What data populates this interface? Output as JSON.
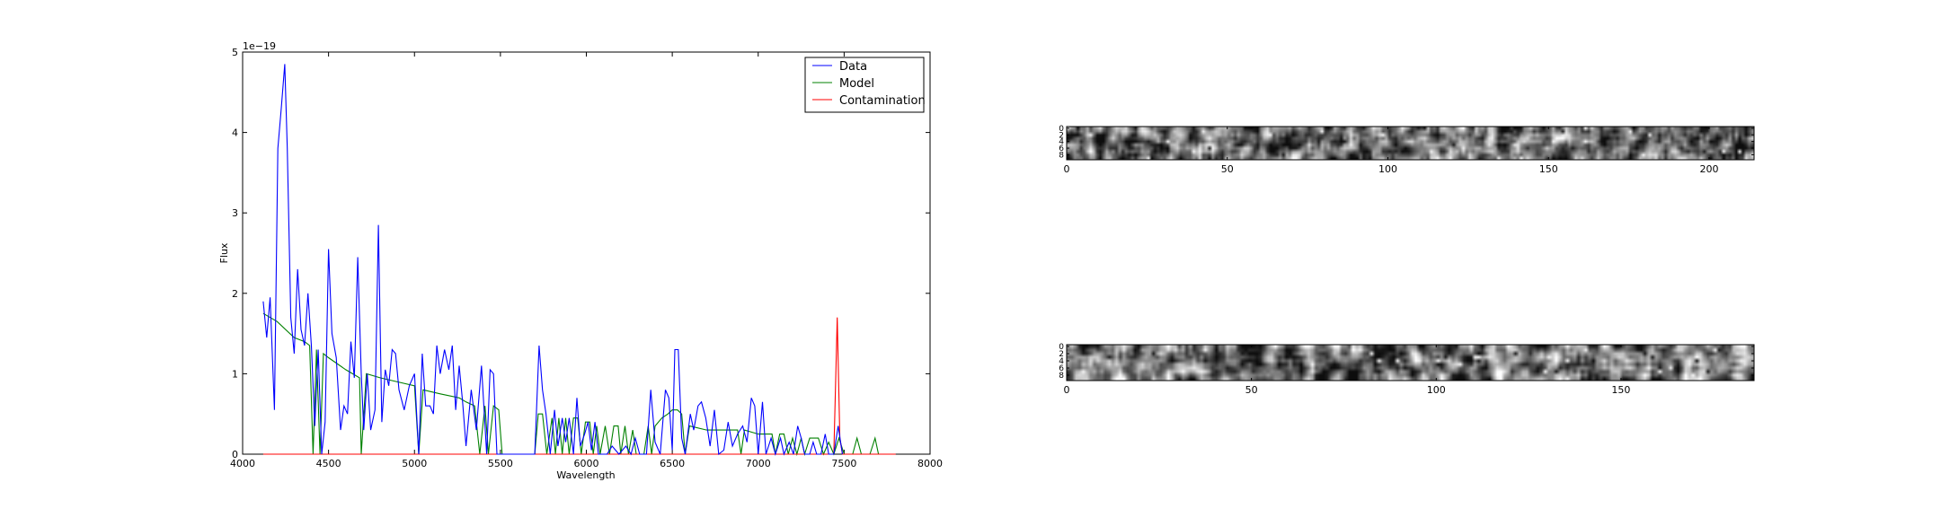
{
  "chart_data": [
    {
      "type": "line",
      "title": "",
      "xlabel": "Wavelength",
      "ylabel": "Flux",
      "y_multiplier": "1e−19",
      "xlim": [
        4000,
        8000
      ],
      "ylim": [
        0,
        5
      ],
      "xticks": [
        4000,
        4500,
        5000,
        5500,
        6000,
        6500,
        7000,
        7500,
        8000
      ],
      "yticks": [
        0,
        1,
        2,
        3,
        4,
        5
      ],
      "grid": false,
      "legend_position": "top-right",
      "series": [
        {
          "name": "Data",
          "color": "#0000ff",
          "points": [
            [
              4120,
              1.9
            ],
            [
              4140,
              1.45
            ],
            [
              4160,
              1.95
            ],
            [
              4185,
              0.55
            ],
            [
              4205,
              3.8
            ],
            [
              4225,
              4.3
            ],
            [
              4245,
              4.85
            ],
            [
              4260,
              3.8
            ],
            [
              4280,
              1.7
            ],
            [
              4300,
              1.25
            ],
            [
              4320,
              2.3
            ],
            [
              4340,
              1.55
            ],
            [
              4360,
              1.35
            ],
            [
              4380,
              2.0
            ],
            [
              4400,
              1.35
            ],
            [
              4420,
              0.35
            ],
            [
              4440,
              1.3
            ],
            [
              4460,
              0.0
            ],
            [
              4480,
              0.4
            ],
            [
              4500,
              2.55
            ],
            [
              4520,
              1.5
            ],
            [
              4545,
              1.2
            ],
            [
              4570,
              0.3
            ],
            [
              4590,
              0.6
            ],
            [
              4610,
              0.5
            ],
            [
              4630,
              1.4
            ],
            [
              4650,
              0.95
            ],
            [
              4670,
              2.45
            ],
            [
              4690,
              1.0
            ],
            [
              4705,
              0.3
            ],
            [
              4725,
              1.0
            ],
            [
              4745,
              0.3
            ],
            [
              4770,
              0.55
            ],
            [
              4790,
              2.85
            ],
            [
              4810,
              0.4
            ],
            [
              4830,
              1.05
            ],
            [
              4850,
              0.85
            ],
            [
              4870,
              1.3
            ],
            [
              4890,
              1.25
            ],
            [
              4910,
              0.8
            ],
            [
              4940,
              0.55
            ],
            [
              4970,
              0.85
            ],
            [
              5000,
              1.0
            ],
            [
              5025,
              0.0
            ],
            [
              5045,
              1.25
            ],
            [
              5065,
              0.6
            ],
            [
              5090,
              0.6
            ],
            [
              5110,
              0.5
            ],
            [
              5130,
              1.35
            ],
            [
              5150,
              1.0
            ],
            [
              5175,
              1.3
            ],
            [
              5200,
              1.05
            ],
            [
              5220,
              1.35
            ],
            [
              5240,
              0.55
            ],
            [
              5260,
              1.1
            ],
            [
              5280,
              0.65
            ],
            [
              5300,
              0.1
            ],
            [
              5330,
              0.8
            ],
            [
              5360,
              0.3
            ],
            [
              5390,
              1.1
            ],
            [
              5420,
              0.0
            ],
            [
              5440,
              1.05
            ],
            [
              5460,
              1.0
            ],
            [
              5480,
              0.0
            ],
            [
              5700,
              0.0
            ],
            [
              5725,
              1.35
            ],
            [
              5745,
              0.8
            ],
            [
              5765,
              0.5
            ],
            [
              5790,
              0.0
            ],
            [
              5815,
              0.55
            ],
            [
              5835,
              0.1
            ],
            [
              5860,
              0.45
            ],
            [
              5880,
              0.15
            ],
            [
              5900,
              0.45
            ],
            [
              5925,
              0.0
            ],
            [
              5945,
              0.7
            ],
            [
              5965,
              0.1
            ],
            [
              5990,
              0.25
            ],
            [
              6010,
              0.4
            ],
            [
              6030,
              0.05
            ],
            [
              6050,
              0.4
            ],
            [
              6070,
              0.0
            ],
            [
              6120,
              0.0
            ],
            [
              6150,
              0.1
            ],
            [
              6190,
              0.0
            ],
            [
              6230,
              0.1
            ],
            [
              6260,
              0.0
            ],
            [
              6285,
              0.2
            ],
            [
              6310,
              0.0
            ],
            [
              6350,
              0.0
            ],
            [
              6375,
              0.8
            ],
            [
              6400,
              0.15
            ],
            [
              6430,
              0.0
            ],
            [
              6460,
              0.8
            ],
            [
              6480,
              0.7
            ],
            [
              6500,
              0.05
            ],
            [
              6515,
              1.3
            ],
            [
              6535,
              1.3
            ],
            [
              6555,
              0.2
            ],
            [
              6575,
              0.0
            ],
            [
              6605,
              0.5
            ],
            [
              6625,
              0.3
            ],
            [
              6650,
              0.6
            ],
            [
              6670,
              0.65
            ],
            [
              6695,
              0.45
            ],
            [
              6720,
              0.1
            ],
            [
              6745,
              0.55
            ],
            [
              6770,
              0.0
            ],
            [
              6800,
              0.05
            ],
            [
              6825,
              0.4
            ],
            [
              6850,
              0.1
            ],
            [
              6880,
              0.25
            ],
            [
              6910,
              0.35
            ],
            [
              6935,
              0.15
            ],
            [
              6960,
              0.7
            ],
            [
              6980,
              0.6
            ],
            [
              7000,
              0.0
            ],
            [
              7025,
              0.65
            ],
            [
              7045,
              0.0
            ],
            [
              7075,
              0.2
            ],
            [
              7100,
              0.0
            ],
            [
              7130,
              0.2
            ],
            [
              7150,
              0.0
            ],
            [
              7180,
              0.15
            ],
            [
              7205,
              0.0
            ],
            [
              7230,
              0.35
            ],
            [
              7250,
              0.2
            ],
            [
              7270,
              0.0
            ],
            [
              7300,
              0.0
            ],
            [
              7320,
              0.15
            ],
            [
              7340,
              0.0
            ],
            [
              7365,
              0.0
            ],
            [
              7390,
              0.25
            ],
            [
              7410,
              0.0
            ],
            [
              7440,
              0.0
            ],
            [
              7465,
              0.35
            ],
            [
              7490,
              0.0
            ]
          ]
        },
        {
          "name": "Model",
          "color": "#008000",
          "points": [
            [
              4120,
              1.75
            ],
            [
              4200,
              1.65
            ],
            [
              4300,
              1.45
            ],
            [
              4360,
              1.4
            ],
            [
              4390,
              1.35
            ],
            [
              4410,
              0.0
            ],
            [
              4430,
              1.3
            ],
            [
              4450,
              0.0
            ],
            [
              4470,
              1.25
            ],
            [
              4500,
              1.2
            ],
            [
              4600,
              1.05
            ],
            [
              4680,
              0.95
            ],
            [
              4690,
              0.0
            ],
            [
              4720,
              1.0
            ],
            [
              4800,
              0.95
            ],
            [
              4900,
              0.9
            ],
            [
              5000,
              0.85
            ],
            [
              5025,
              0.0
            ],
            [
              5050,
              0.8
            ],
            [
              5150,
              0.75
            ],
            [
              5260,
              0.7
            ],
            [
              5300,
              0.65
            ],
            [
              5350,
              0.6
            ],
            [
              5380,
              0.0
            ],
            [
              5410,
              0.6
            ],
            [
              5430,
              0.0
            ],
            [
              5460,
              0.6
            ],
            [
              5490,
              0.55
            ],
            [
              5510,
              0.0
            ],
            [
              5700,
              0.0
            ],
            [
              5720,
              0.5
            ],
            [
              5745,
              0.5
            ],
            [
              5770,
              0.0
            ],
            [
              5800,
              0.45
            ],
            [
              5820,
              0.0
            ],
            [
              5840,
              0.45
            ],
            [
              5860,
              0.0
            ],
            [
              5880,
              0.45
            ],
            [
              5900,
              0.0
            ],
            [
              5925,
              0.45
            ],
            [
              5950,
              0.45
            ],
            [
              5970,
              0.0
            ],
            [
              5995,
              0.4
            ],
            [
              6020,
              0.4
            ],
            [
              6040,
              0.0
            ],
            [
              6060,
              0.35
            ],
            [
              6080,
              0.0
            ],
            [
              6110,
              0.35
            ],
            [
              6135,
              0.0
            ],
            [
              6160,
              0.35
            ],
            [
              6185,
              0.35
            ],
            [
              6200,
              0.0
            ],
            [
              6225,
              0.35
            ],
            [
              6245,
              0.0
            ],
            [
              6270,
              0.3
            ],
            [
              6290,
              0.0
            ],
            [
              6310,
              0.0
            ],
            [
              6335,
              0.0
            ],
            [
              6360,
              0.35
            ],
            [
              6380,
              0.0
            ],
            [
              6400,
              0.35
            ],
            [
              6440,
              0.45
            ],
            [
              6475,
              0.5
            ],
            [
              6500,
              0.55
            ],
            [
              6530,
              0.55
            ],
            [
              6555,
              0.5
            ],
            [
              6575,
              0.0
            ],
            [
              6600,
              0.35
            ],
            [
              6700,
              0.3
            ],
            [
              6800,
              0.3
            ],
            [
              6880,
              0.3
            ],
            [
              6900,
              0.0
            ],
            [
              6920,
              0.3
            ],
            [
              7000,
              0.25
            ],
            [
              7080,
              0.25
            ],
            [
              7100,
              0.0
            ],
            [
              7125,
              0.25
            ],
            [
              7150,
              0.25
            ],
            [
              7175,
              0.0
            ],
            [
              7200,
              0.2
            ],
            [
              7225,
              0.0
            ],
            [
              7250,
              0.2
            ],
            [
              7270,
              0.0
            ],
            [
              7300,
              0.2
            ],
            [
              7350,
              0.2
            ],
            [
              7380,
              0.0
            ],
            [
              7410,
              0.15
            ],
            [
              7440,
              0.0
            ],
            [
              7470,
              0.2
            ],
            [
              7500,
              0.0
            ],
            [
              7550,
              0.0
            ],
            [
              7575,
              0.2
            ],
            [
              7600,
              0.0
            ],
            [
              7650,
              0.0
            ],
            [
              7680,
              0.2
            ],
            [
              7700,
              0.0
            ],
            [
              7760,
              0.0
            ]
          ]
        },
        {
          "name": "Contamination",
          "color": "#ff0000",
          "points": [
            [
              4120,
              0.0
            ],
            [
              7400,
              0.0
            ],
            [
              7440,
              0.0
            ],
            [
              7460,
              1.7
            ],
            [
              7475,
              0.2
            ],
            [
              7490,
              0.0
            ],
            [
              7800,
              0.0
            ]
          ]
        }
      ]
    },
    {
      "type": "heatmap",
      "title": "",
      "xlim": [
        0,
        214
      ],
      "ylim": [
        0,
        10
      ],
      "xticks": [
        0,
        50,
        100,
        150,
        200
      ],
      "yticks": [
        0,
        2,
        4,
        6,
        8
      ],
      "colormap": "gray",
      "rows": 10,
      "cols": 214,
      "seed": 7
    },
    {
      "type": "heatmap",
      "title": "",
      "xlim": [
        0,
        186
      ],
      "ylim": [
        0,
        10
      ],
      "xticks": [
        0,
        50,
        100,
        150
      ],
      "yticks": [
        0,
        2,
        4,
        6,
        8
      ],
      "colormap": "gray",
      "rows": 10,
      "cols": 186,
      "seed": 13
    }
  ]
}
